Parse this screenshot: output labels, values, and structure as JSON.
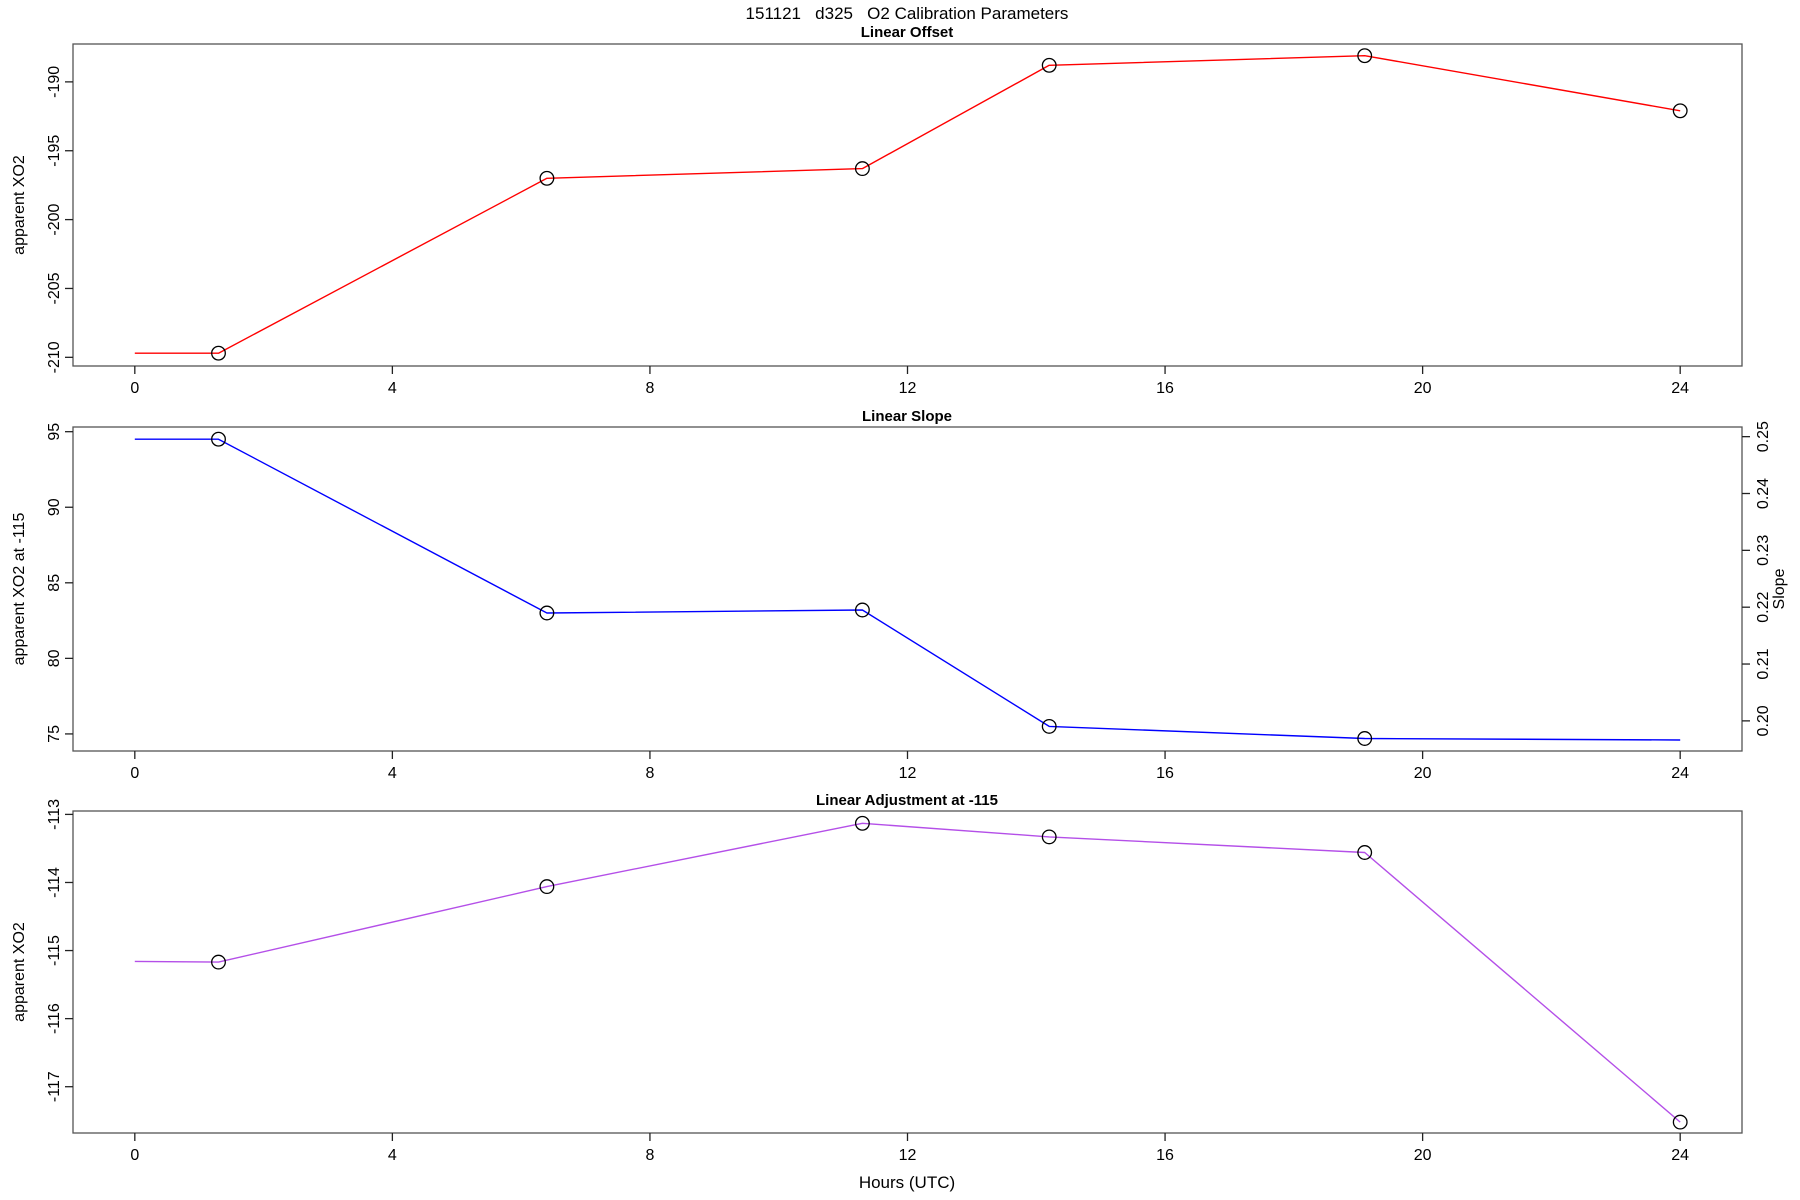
{
  "title": "151121   d325   O2 Calibration Parameters",
  "xlabel": "Hours (UTC)",
  "xticks": [
    "0",
    "4",
    "8",
    "12",
    "16",
    "20",
    "24"
  ],
  "xlim": [
    -0.96,
    24.96
  ],
  "axis_color": "#555555",
  "tick_color": "#222222",
  "marker_color": "#000000",
  "chart_data": [
    {
      "type": "line",
      "title": "Linear Offset",
      "ylabel": "apparent XO2",
      "color": "#ff0000",
      "x": [
        0,
        1.3,
        6.4,
        11.3,
        14.2,
        19.1,
        24
      ],
      "y": [
        -209.7,
        -209.7,
        -197.0,
        -196.3,
        -188.8,
        -188.1,
        -192.1
      ],
      "markers": [
        false,
        true,
        true,
        true,
        true,
        true,
        true
      ],
      "yticks": [
        "-210",
        "-205",
        "-200",
        "-195",
        "-190"
      ],
      "ylim": [
        -210.63,
        -187.25
      ],
      "grid": false
    },
    {
      "type": "line",
      "title": "Linear Slope",
      "ylabel": "apparent XO2 at -115",
      "y2label": "Slope",
      "color": "#0000ff",
      "x": [
        0,
        1.3,
        6.4,
        11.3,
        14.2,
        19.1,
        24
      ],
      "y": [
        94.5,
        94.5,
        83.0,
        83.2,
        75.5,
        74.7,
        74.6
      ],
      "markers": [
        false,
        true,
        true,
        true,
        true,
        true,
        false
      ],
      "yticks": [
        "75",
        "80",
        "85",
        "90",
        "95"
      ],
      "ylim": [
        73.87,
        95.31
      ],
      "y2ticks": [
        "0.20",
        "0.21",
        "0.22",
        "0.23",
        "0.24",
        "0.25"
      ],
      "y2lim": [
        0.1947,
        0.2517
      ],
      "grid": false
    },
    {
      "type": "line",
      "title": "Linear Adjustment at -115",
      "ylabel": "apparent XO2",
      "color": "#b44fe8",
      "x": [
        0,
        1.3,
        6.4,
        11.3,
        14.2,
        19.1,
        24
      ],
      "y": [
        -115.16,
        -115.17,
        -114.06,
        -113.13,
        -113.33,
        -113.56,
        -117.52
      ],
      "markers": [
        false,
        true,
        true,
        true,
        true,
        true,
        true
      ],
      "yticks": [
        "-117",
        "-116",
        "-115",
        "-114",
        "-113"
      ],
      "ylim": [
        -117.68,
        -112.95
      ],
      "grid": false
    }
  ]
}
